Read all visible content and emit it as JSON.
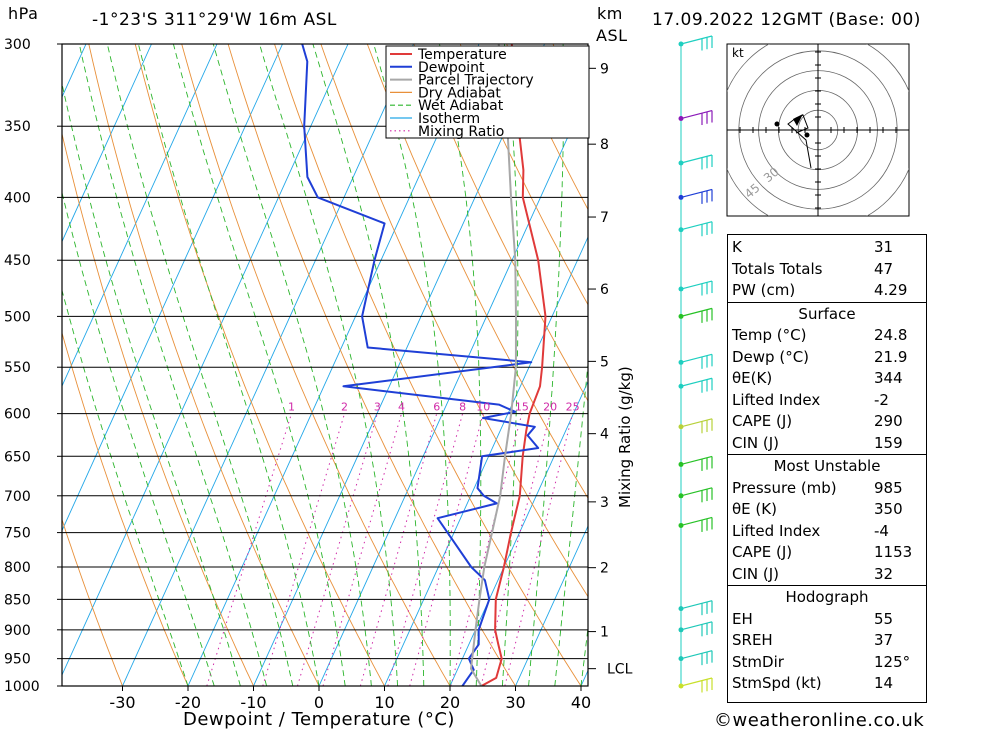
{
  "header": {
    "pressure_unit": "hPa",
    "location": "-1°23'S  311°29'W  16m  ASL",
    "height_unit_1": "km",
    "height_unit_2": "ASL",
    "datetime": "17.09.2022  12GMT  (Base: 00)"
  },
  "footer": {
    "xlabel": "Dewpoint / Temperature (°C)",
    "credit": "©weatheronline.co.uk",
    "mixing_axis_label": "Mixing Ratio (g/kg)"
  },
  "colors": {
    "temperature": "#e03a3a",
    "dewpoint": "#1f3fd6",
    "parcel": "#a8a8a8",
    "dry_adiabat": "#e8903a",
    "wet_adiabat": "#2cb52c",
    "isotherm": "#23a7e8",
    "mixing_ratio": "#d02aa8",
    "wind": "#1ecfc0"
  },
  "chart_data": {
    "type": "skew-t log-p",
    "legend": [
      "Temperature",
      "Dewpoint",
      "Parcel Trajectory",
      "Dry Adiabat",
      "Wet Adiabat",
      "Isotherm",
      "Mixing Ratio"
    ],
    "pressure_levels": [
      300,
      350,
      400,
      450,
      500,
      550,
      600,
      650,
      700,
      750,
      800,
      850,
      900,
      950,
      1000
    ],
    "temperature_ticks": [
      -30,
      -20,
      -10,
      0,
      10,
      20,
      30,
      40
    ],
    "height_ticks": [
      {
        "km": "1",
        "p": 903
      },
      {
        "km": "2",
        "p": 801
      },
      {
        "km": "3",
        "p": 708
      },
      {
        "km": "4",
        "p": 623
      },
      {
        "km": "5",
        "p": 544
      },
      {
        "km": "6",
        "p": 475
      },
      {
        "km": "7",
        "p": 415
      },
      {
        "km": "8",
        "p": 362
      },
      {
        "km": "9",
        "p": 314
      },
      {
        "km": "LCL",
        "p": 968
      }
    ],
    "mixing_ratio_labels": [
      "1",
      "2",
      "3",
      "4",
      "6",
      "8",
      "10",
      "15",
      "20",
      "25"
    ],
    "series": [
      {
        "name": "Temperature",
        "points": [
          [
            1000,
            24.8
          ],
          [
            985,
            26.5
          ],
          [
            950,
            26
          ],
          [
            925,
            24.5
          ],
          [
            900,
            23
          ],
          [
            850,
            21
          ],
          [
            800,
            20
          ],
          [
            750,
            18.7
          ],
          [
            700,
            17.5
          ],
          [
            650,
            15.2
          ],
          [
            620,
            14
          ],
          [
            600,
            13.3
          ],
          [
            570,
            13
          ],
          [
            550,
            12
          ],
          [
            500,
            9
          ],
          [
            450,
            4
          ],
          [
            400,
            -2.7
          ],
          [
            380,
            -4.5
          ],
          [
            360,
            -7
          ],
          [
            330,
            -11
          ],
          [
            300,
            -15
          ]
        ]
      },
      {
        "name": "Dewpoint",
        "points": [
          [
            1000,
            21.9
          ],
          [
            970,
            22.5
          ],
          [
            950,
            21
          ],
          [
            925,
            21.5
          ],
          [
            900,
            20.5
          ],
          [
            870,
            20.2
          ],
          [
            850,
            20
          ],
          [
            820,
            18
          ],
          [
            800,
            15
          ],
          [
            750,
            9
          ],
          [
            730,
            6.5
          ],
          [
            710,
            14.5
          ],
          [
            700,
            12
          ],
          [
            690,
            10.5
          ],
          [
            650,
            9
          ],
          [
            640,
            17
          ],
          [
            625,
            14.5
          ],
          [
            615,
            15
          ],
          [
            605,
            6.5
          ],
          [
            598,
            11
          ],
          [
            590,
            8
          ],
          [
            570,
            -17
          ],
          [
            545,
            10
          ],
          [
            530,
            -16
          ],
          [
            500,
            -19
          ],
          [
            450,
            -21
          ],
          [
            420,
            -22
          ],
          [
            400,
            -34
          ],
          [
            385,
            -37
          ],
          [
            350,
            -41
          ],
          [
            310,
            -45
          ],
          [
            300,
            -47
          ]
        ]
      },
      {
        "name": "Parcel Trajectory",
        "points": [
          [
            1000,
            24.8
          ],
          [
            968,
            22
          ],
          [
            900,
            20
          ],
          [
            850,
            18.5
          ],
          [
            800,
            17
          ],
          [
            750,
            15.8
          ],
          [
            700,
            14.5
          ],
          [
            650,
            12.5
          ],
          [
            600,
            10.5
          ],
          [
            550,
            8
          ],
          [
            500,
            4.5
          ],
          [
            450,
            0.5
          ],
          [
            400,
            -4.5
          ],
          [
            350,
            -10
          ],
          [
            300,
            -17
          ]
        ]
      }
    ],
    "wind_levels": [
      300,
      345,
      375,
      400,
      425,
      475,
      500,
      545,
      570,
      615,
      660,
      700,
      740,
      865,
      900,
      950,
      1000
    ]
  },
  "hodograph": {
    "unit": "kt",
    "ring_labels": [
      "30",
      "45"
    ]
  },
  "indices": {
    "general": [
      {
        "label": "K",
        "value": "31"
      },
      {
        "label": "Totals Totals",
        "value": "47"
      },
      {
        "label": "PW (cm)",
        "value": "4.29"
      }
    ],
    "surface": {
      "title": "Surface",
      "rows": [
        {
          "label": "Temp (°C)",
          "value": "24.8"
        },
        {
          "label": "Dewp (°C)",
          "value": "21.9"
        },
        {
          "label": "θE(K)",
          "value": "344"
        },
        {
          "label": "Lifted Index",
          "value": "-2"
        },
        {
          "label": "CAPE (J)",
          "value": "290"
        },
        {
          "label": "CIN (J)",
          "value": "159"
        }
      ]
    },
    "most_unstable": {
      "title": "Most Unstable",
      "rows": [
        {
          "label": "Pressure (mb)",
          "value": "985"
        },
        {
          "label": "θE (K)",
          "value": "350"
        },
        {
          "label": "Lifted Index",
          "value": "-4"
        },
        {
          "label": "CAPE (J)",
          "value": "1153"
        },
        {
          "label": "CIN (J)",
          "value": "32"
        }
      ]
    },
    "hodograph_box": {
      "title": "Hodograph",
      "rows": [
        {
          "label": "EH",
          "value": "55"
        },
        {
          "label": "SREH",
          "value": "37"
        },
        {
          "label": "StmDir",
          "value": "125°"
        },
        {
          "label": "StmSpd (kt)",
          "value": "14"
        }
      ]
    }
  }
}
